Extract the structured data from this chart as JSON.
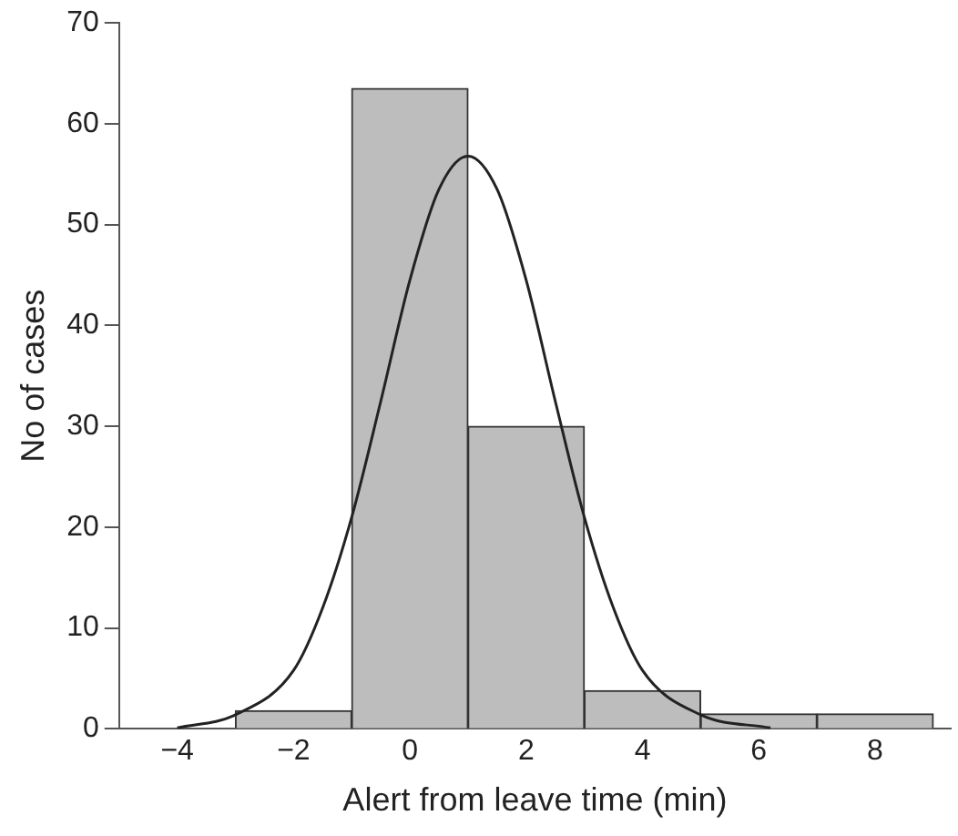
{
  "chart_data": {
    "type": "histogram",
    "xlabel": "Alert from leave time (min)",
    "ylabel": "No of cases",
    "bins": [
      -3,
      -1,
      1,
      3,
      5,
      7,
      9
    ],
    "values": [
      1.8,
      63.5,
      30,
      3.8,
      1.5,
      1.5
    ],
    "color": "#bdbdbd",
    "series": [
      {
        "type": "line",
        "color": "#222222",
        "x": [
          -4,
          -3,
          -2,
          -1.5,
          -1,
          -0.5,
          0,
          0.5,
          1,
          1.5,
          2,
          2.5,
          3,
          3.5,
          4,
          5,
          6.2
        ],
        "values": [
          0.1,
          1.4,
          5.8,
          12,
          21,
          32.5,
          44.5,
          53.5,
          56.8,
          53.5,
          44.5,
          32.5,
          21,
          12,
          5.8,
          1.4,
          0.1
        ]
      }
    ],
    "marker": "none",
    "grid": false,
    "legend": false,
    "xlim": [
      -5,
      9.3
    ],
    "xticks": [
      -4,
      -2,
      0,
      2,
      4,
      6,
      8
    ],
    "ylim": [
      0,
      70
    ],
    "yticks": [
      0,
      10,
      20,
      30,
      40,
      50,
      60,
      70
    ]
  }
}
